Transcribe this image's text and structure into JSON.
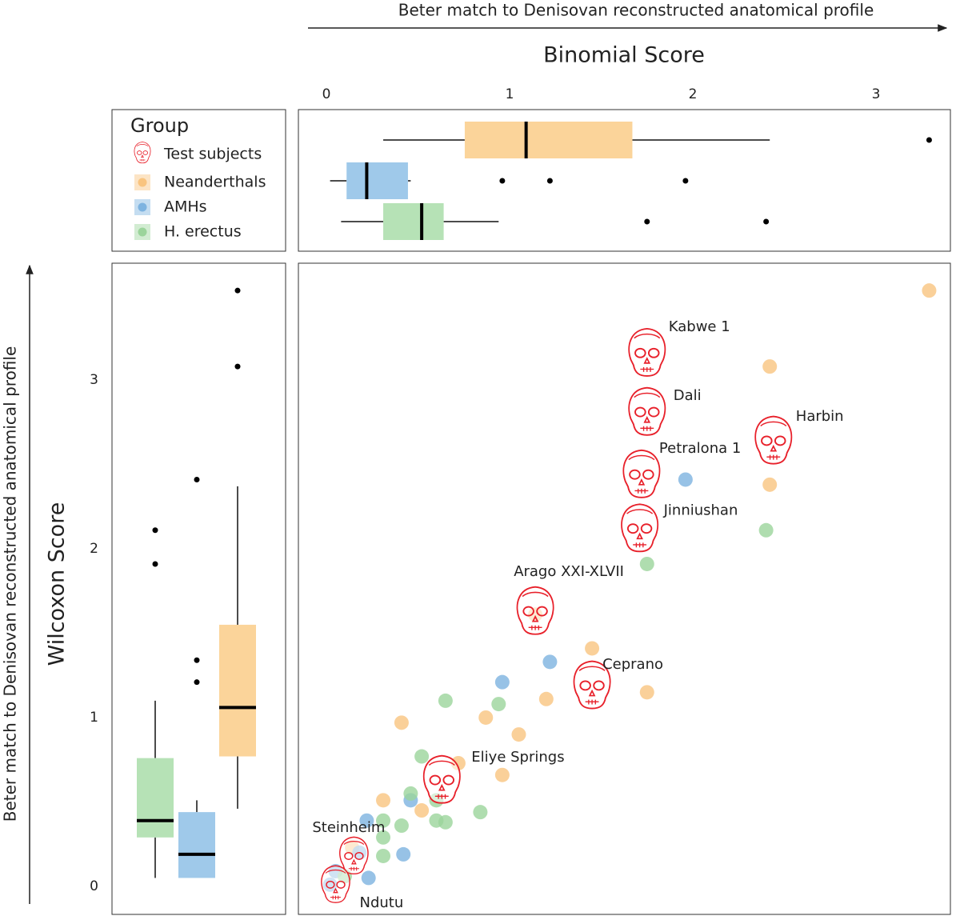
{
  "chart_data": [
    {
      "type": "scatter",
      "x_label": "Binomial Score",
      "y_label": "Wilcoxon Score",
      "x_arrow_label": "Beter match to Denisovan reconstructed anatomical profile",
      "y_arrow_label": "Beter match to Denisovan reconstructed anatomical profile",
      "legend_title": "Group",
      "xlim": [
        -0.153,
        3.406
      ],
      "ylim": [
        -0.166,
        3.692
      ],
      "test_subjects": {
        "name": "Test subjects",
        "color": "#e8202a",
        "labels": [
          "Kabwe 1",
          "Dali",
          "Harbin",
          "Petralona 1",
          "Jinniushan",
          "Arago XXI-XLVII",
          "Ceprano",
          "Eliye Springs",
          "Steinheim",
          "Ndutu"
        ],
        "x": [
          1.75,
          1.75,
          2.44,
          1.72,
          1.71,
          1.14,
          1.45,
          0.63,
          0.15,
          0.05
        ],
        "y": [
          3.16,
          2.81,
          2.64,
          2.44,
          2.12,
          1.63,
          1.19,
          0.63,
          0.18,
          0.01
        ]
      },
      "series": [
        {
          "name": "Neanderthals",
          "color": "#f9c47f",
          "text_color": "#f4a93b",
          "x": [
            3.29,
            2.42,
            2.42,
            1.45,
            1.75,
            1.2,
            0.87,
            1.05,
            0.41,
            0.72,
            0.96,
            0.31,
            0.52,
            1.14,
            0.14
          ],
          "y": [
            3.53,
            3.08,
            2.38,
            1.41,
            1.15,
            1.11,
            1.0,
            0.9,
            0.97,
            0.73,
            0.66,
            0.51,
            0.45,
            1.61,
            0.23
          ]
        },
        {
          "name": "AMHs",
          "color": "#7db3e0",
          "text_color": "#3b9ad6",
          "x": [
            1.96,
            1.22,
            0.96,
            0.46,
            0.22,
            0.42,
            0.18,
            0.23,
            0.02,
            0.05
          ],
          "y": [
            2.41,
            1.33,
            1.21,
            0.51,
            0.39,
            0.19,
            0.2,
            0.05,
            0.01,
            0.09
          ]
        },
        {
          "name": "H. erectus",
          "color": "#9bd49b",
          "text_color": "#22aa44",
          "x": [
            1.75,
            2.4,
            0.65,
            0.94,
            0.52,
            0.46,
            0.6,
            0.84,
            0.65,
            0.6,
            0.31,
            0.41,
            0.31,
            0.31,
            0.1
          ],
          "y": [
            1.91,
            2.11,
            1.1,
            1.08,
            0.77,
            0.55,
            0.51,
            0.44,
            0.38,
            0.39,
            0.39,
            0.36,
            0.29,
            0.18,
            0.06
          ]
        }
      ]
    },
    {
      "type": "boxplot",
      "orientation": "horizontal",
      "xlim": [
        -0.153,
        3.406
      ],
      "xticks": [
        0,
        1,
        2,
        3
      ],
      "boxes": [
        {
          "color": "#fbd49a",
          "whisker_low": 0.31,
          "q1": 0.755,
          "median": 1.09,
          "q3": 1.67,
          "whisker_high": 2.42,
          "outliers": [
            3.29
          ]
        },
        {
          "color": "#9fc9ea",
          "whisker_low": 0.02,
          "q1": 0.11,
          "median": 0.22,
          "q3": 0.445,
          "whisker_high": 0.46,
          "outliers": [
            0.96,
            1.22,
            1.96
          ]
        },
        {
          "color": "#b6e2b6",
          "whisker_low": 0.08,
          "q1": 0.31,
          "median": 0.52,
          "q3": 0.64,
          "whisker_high": 0.94,
          "outliers": [
            1.75,
            2.4
          ]
        }
      ]
    },
    {
      "type": "boxplot",
      "orientation": "vertical",
      "ylim": [
        -0.166,
        3.692
      ],
      "yticks": [
        0,
        1,
        2,
        3
      ],
      "boxes": [
        {
          "color": "#b6e2b6",
          "whisker_low": 0.05,
          "q1": 0.29,
          "median": 0.39,
          "q3": 0.76,
          "whisker_high": 1.1,
          "outliers": [
            2.11,
            1.91
          ]
        },
        {
          "color": "#9fc9ea",
          "whisker_low": 0.05,
          "q1": 0.05,
          "median": 0.19,
          "q3": 0.44,
          "whisker_high": 0.51,
          "outliers": [
            2.41,
            1.34,
            1.21
          ]
        },
        {
          "color": "#fbd49a",
          "whisker_low": 0.46,
          "q1": 0.77,
          "median": 1.06,
          "q3": 1.55,
          "whisker_high": 2.37,
          "outliers": [
            3.08,
            3.53
          ]
        }
      ]
    }
  ]
}
